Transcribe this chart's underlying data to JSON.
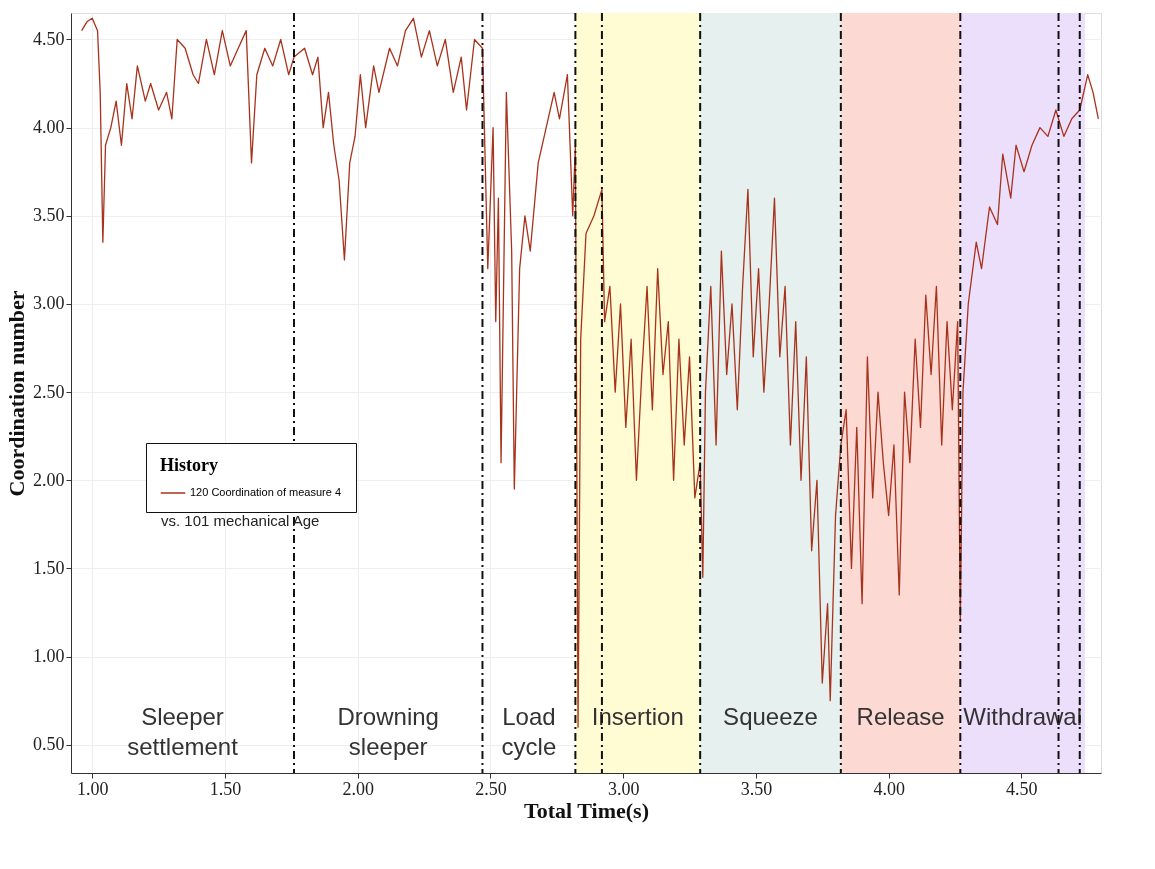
{
  "chart_data": {
    "type": "line",
    "xlabel": "Total Time(s)",
    "ylabel": "Coordination number",
    "legend_title": "History",
    "x": [
      0.96,
      0.98,
      1.0,
      1.02,
      1.03,
      1.04,
      1.05,
      1.07,
      1.09,
      1.11,
      1.13,
      1.15,
      1.17,
      1.2,
      1.22,
      1.25,
      1.28,
      1.3,
      1.32,
      1.35,
      1.38,
      1.4,
      1.43,
      1.46,
      1.49,
      1.52,
      1.55,
      1.58,
      1.6,
      1.62,
      1.65,
      1.68,
      1.71,
      1.74,
      1.76,
      1.8,
      1.83,
      1.85,
      1.87,
      1.89,
      1.91,
      1.93,
      1.95,
      1.97,
      1.99,
      2.01,
      2.03,
      2.06,
      2.08,
      2.12,
      2.15,
      2.18,
      2.21,
      2.24,
      2.27,
      2.3,
      2.33,
      2.36,
      2.39,
      2.41,
      2.44,
      2.47,
      2.49,
      2.51,
      2.52,
      2.53,
      2.54,
      2.56,
      2.58,
      2.59,
      2.61,
      2.63,
      2.65,
      2.68,
      2.71,
      2.74,
      2.76,
      2.79,
      2.81,
      2.82,
      2.83,
      2.84,
      2.86,
      2.89,
      2.92,
      2.93,
      2.95,
      2.97,
      2.99,
      3.01,
      3.03,
      3.05,
      3.07,
      3.09,
      3.11,
      3.13,
      3.15,
      3.17,
      3.19,
      3.21,
      3.23,
      3.25,
      3.27,
      3.29,
      3.3,
      3.31,
      3.33,
      3.35,
      3.37,
      3.39,
      3.41,
      3.43,
      3.45,
      3.47,
      3.49,
      3.51,
      3.53,
      3.55,
      3.57,
      3.59,
      3.61,
      3.63,
      3.65,
      3.67,
      3.69,
      3.71,
      3.73,
      3.75,
      3.77,
      3.78,
      3.8,
      3.82,
      3.84,
      3.86,
      3.88,
      3.9,
      3.92,
      3.94,
      3.96,
      3.98,
      4.0,
      4.02,
      4.04,
      4.06,
      4.08,
      4.1,
      4.12,
      4.14,
      4.16,
      4.18,
      4.2,
      4.22,
      4.24,
      4.26,
      4.27,
      4.28,
      4.3,
      4.33,
      4.35,
      4.38,
      4.41,
      4.43,
      4.46,
      4.48,
      4.51,
      4.54,
      4.57,
      4.6,
      4.63,
      4.66,
      4.69,
      4.72,
      4.75,
      4.77,
      4.79
    ],
    "series": [
      {
        "name": "120 Coordination of measure 4",
        "color": "#a8331c",
        "values": [
          4.55,
          4.6,
          4.62,
          4.55,
          4.2,
          3.35,
          3.9,
          4.0,
          4.15,
          3.9,
          4.25,
          4.05,
          4.35,
          4.15,
          4.25,
          4.1,
          4.2,
          4.05,
          4.5,
          4.45,
          4.3,
          4.25,
          4.5,
          4.3,
          4.55,
          4.35,
          4.45,
          4.55,
          3.8,
          4.3,
          4.45,
          4.35,
          4.5,
          4.3,
          4.4,
          4.45,
          4.3,
          4.4,
          4.0,
          4.2,
          3.9,
          3.7,
          3.25,
          3.8,
          3.95,
          4.3,
          4.0,
          4.35,
          4.2,
          4.45,
          4.35,
          4.55,
          4.62,
          4.4,
          4.55,
          4.35,
          4.5,
          4.2,
          4.4,
          4.1,
          4.5,
          4.45,
          3.2,
          4.0,
          2.9,
          3.6,
          2.1,
          4.2,
          3.3,
          1.95,
          3.2,
          3.5,
          3.3,
          3.8,
          4.0,
          4.2,
          4.05,
          4.3,
          3.5,
          3.9,
          0.6,
          2.8,
          3.4,
          3.5,
          3.65,
          2.9,
          3.1,
          2.5,
          3.0,
          2.3,
          2.8,
          2.0,
          2.6,
          3.1,
          2.4,
          3.2,
          2.6,
          2.9,
          2.0,
          2.8,
          2.2,
          2.7,
          1.9,
          2.1,
          1.45,
          2.5,
          3.1,
          2.2,
          3.3,
          2.6,
          3.0,
          2.4,
          3.1,
          3.65,
          2.7,
          3.2,
          2.5,
          3.0,
          3.6,
          2.7,
          3.1,
          2.2,
          2.9,
          2.0,
          2.7,
          1.6,
          2.0,
          0.85,
          1.3,
          0.75,
          1.8,
          2.2,
          2.4,
          1.5,
          2.3,
          1.3,
          2.7,
          1.9,
          2.5,
          2.1,
          1.8,
          2.2,
          1.35,
          2.5,
          2.1,
          2.8,
          2.3,
          3.05,
          2.6,
          3.1,
          2.2,
          2.9,
          2.4,
          2.9,
          1.2,
          2.5,
          3.0,
          3.35,
          3.2,
          3.55,
          3.45,
          3.85,
          3.6,
          3.9,
          3.75,
          3.9,
          4.0,
          3.95,
          4.1,
          3.95,
          4.05,
          4.1,
          4.3,
          4.2,
          4.05
        ]
      }
    ],
    "xlim": [
      0.92,
      4.8
    ],
    "ylim": [
      0.34,
      4.65
    ],
    "xticks": [
      {
        "value": 1.0,
        "label": "1.00"
      },
      {
        "value": 1.5,
        "label": "1.50"
      },
      {
        "value": 2.0,
        "label": "2.00"
      },
      {
        "value": 2.5,
        "label": "2.50"
      },
      {
        "value": 3.0,
        "label": "3.00"
      },
      {
        "value": 3.5,
        "label": "3.50"
      },
      {
        "value": 4.0,
        "label": "4.00"
      },
      {
        "value": 4.5,
        "label": "4.50"
      }
    ],
    "yticks": [
      {
        "value": 0.5,
        "label": "0.50"
      },
      {
        "value": 1.0,
        "label": "1.00"
      },
      {
        "value": 1.5,
        "label": "1.50"
      },
      {
        "value": 2.0,
        "label": "2.00"
      },
      {
        "value": 2.5,
        "label": "2.50"
      },
      {
        "value": 3.0,
        "label": "3.00"
      },
      {
        "value": 3.5,
        "label": "3.50"
      },
      {
        "value": 4.0,
        "label": "4.00"
      },
      {
        "value": 4.5,
        "label": "4.50"
      }
    ],
    "bands": [
      {
        "axis": "x",
        "from": 2.82,
        "to": 3.29,
        "color": "#fffbd2",
        "label": "Insertion"
      },
      {
        "axis": "x",
        "from": 3.29,
        "to": 3.82,
        "color": "#e6f0ee",
        "label": "Squeeze"
      },
      {
        "axis": "x",
        "from": 3.82,
        "to": 4.27,
        "color": "#fdd9d4",
        "label": "Release"
      },
      {
        "axis": "x",
        "from": 4.27,
        "to": 4.74,
        "color": "#ecdffb",
        "label": "Withdrawal"
      }
    ],
    "ref_lines": [
      {
        "axis": "x",
        "value": 1.76,
        "line_style": "dashed"
      },
      {
        "axis": "x",
        "value": 2.47,
        "line_style": "dashed"
      },
      {
        "axis": "x",
        "value": 2.82,
        "line_style": "dashed"
      },
      {
        "axis": "x",
        "value": 2.92,
        "line_style": "dashed"
      },
      {
        "axis": "x",
        "value": 3.29,
        "line_style": "dashed"
      },
      {
        "axis": "x",
        "value": 3.82,
        "line_style": "dashed"
      },
      {
        "axis": "x",
        "value": 4.27,
        "line_style": "dashed"
      },
      {
        "axis": "x",
        "value": 4.64,
        "line_style": "dashed"
      },
      {
        "axis": "x",
        "value": 4.72,
        "line_style": "dashed"
      }
    ],
    "annotations": [
      "Sleeper settlement",
      "Drowning sleeper",
      "Load cycle",
      "vs. 101 mechanical Age"
    ],
    "grid": true,
    "legend": "bottom left",
    "line_style": "solid",
    "marker": "none"
  }
}
